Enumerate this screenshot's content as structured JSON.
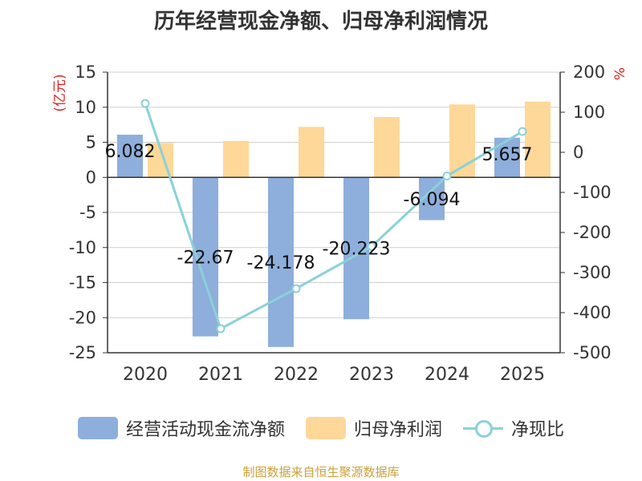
{
  "chart_data": {
    "type": "bar",
    "title": "历年经营现金净额、归母净利润情况",
    "categories": [
      "2020",
      "2021",
      "2022",
      "2023",
      "2024",
      "2025"
    ],
    "series": [
      {
        "name": "经营活动现金流净额",
        "type": "bar",
        "axis": "left",
        "color": "#8eaedc",
        "values": [
          6.082,
          -22.67,
          -24.178,
          -20.223,
          -6.094,
          5.657
        ],
        "labels": [
          "6.082",
          "-22.67",
          "-24.178",
          "-20.223",
          "-6.094",
          "5.657"
        ]
      },
      {
        "name": "归母净利润",
        "type": "bar",
        "axis": "left",
        "color": "#fdd898",
        "values": [
          4.9,
          5.2,
          7.2,
          8.6,
          10.4,
          10.8
        ]
      },
      {
        "name": "净现比",
        "type": "line",
        "axis": "right",
        "color": "#8ad1d8",
        "values": [
          122,
          -440,
          -340,
          -235,
          -59,
          52
        ]
      }
    ],
    "ylabel_left": "(亿元)",
    "ylabel_right": "%",
    "ylim_left": [
      -25,
      15
    ],
    "ylim_right": [
      -500,
      200
    ],
    "yticks_left": [
      -25,
      -20,
      -15,
      -10,
      -5,
      0,
      5,
      10,
      15
    ],
    "yticks_right": [
      -500,
      -400,
      -300,
      -200,
      -100,
      0,
      100,
      200
    ],
    "legend_position": "bottom"
  },
  "source_text": "制图数据来自恒生聚源数据库"
}
